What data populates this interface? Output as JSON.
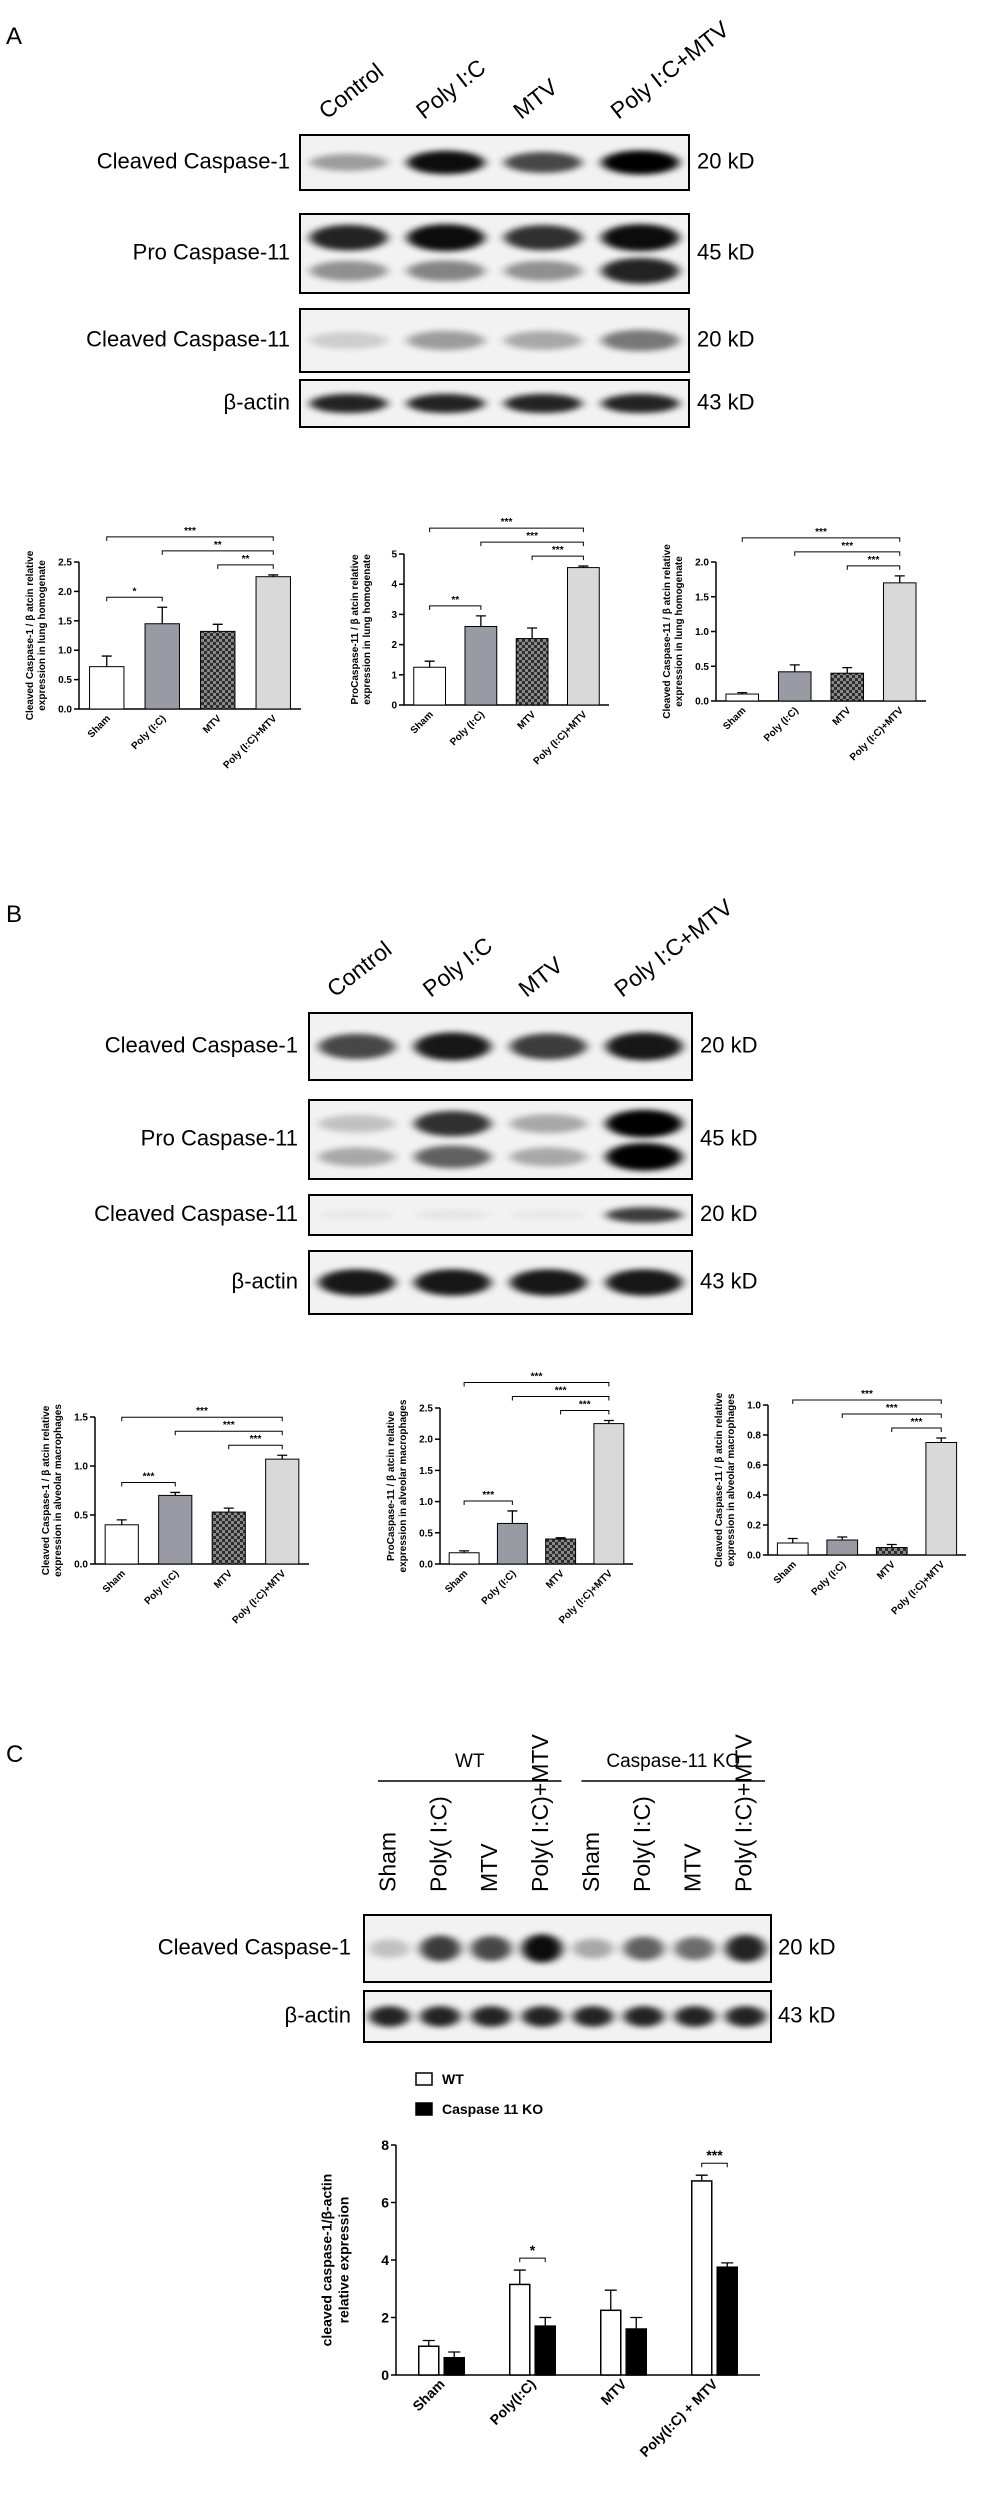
{
  "panels": [
    "A",
    "B",
    "C"
  ],
  "blots": [
    {
      "lanes": [
        "Control",
        "Poly I:C",
        "MTV",
        "Poly I:C+MTV"
      ],
      "rows": [
        {
          "label": "Cleaved Caspase-1",
          "size": "20 kD"
        },
        {
          "label": "Pro Caspase-11",
          "size": "45 kD"
        },
        {
          "label": "Cleaved Caspase-11",
          "size": "20 kD"
        },
        {
          "label": "β-actin",
          "size": "43 kD"
        }
      ]
    },
    {
      "lanes": [
        "Control",
        "Poly I:C",
        "MTV",
        "Poly I:C+MTV"
      ],
      "rows": [
        {
          "label": "Cleaved Caspase-1",
          "size": "20 kD"
        },
        {
          "label": "Pro Caspase-11",
          "size": "45 kD"
        },
        {
          "label": "Cleaved Caspase-11",
          "size": "20 kD"
        },
        {
          "label": "β-actin",
          "size": "43 kD"
        }
      ]
    },
    {
      "groups": [
        "WT",
        "Caspase-11 KO"
      ],
      "lanes": [
        "Sham",
        "Poly( I:C)",
        "MTV",
        "Poly( I:C)+MTV",
        "Sham",
        "Poly( I:C)",
        "MTV",
        "Poly( I:C)+MTV"
      ],
      "rows": [
        {
          "label": "Cleaved Caspase-1",
          "size": "20 kD"
        },
        {
          "label": "β-actin",
          "size": "43 kD"
        }
      ]
    }
  ],
  "chart_data": [
    {
      "type": "bar",
      "ylabel": [
        "Cleaved Caspase-1 / β atcin relative",
        "expression in lung homogenate"
      ],
      "categories": [
        "Sham",
        "Poly (I:C)",
        "MTV",
        "Poly (I:C)+MTV"
      ],
      "values": [
        0.72,
        1.45,
        1.32,
        2.25
      ],
      "errors": [
        0.18,
        0.28,
        0.12,
        0.03
      ],
      "colors": [
        "#ffffff",
        "#9a9aa4",
        "#4a4a4a",
        "#d9d9d9"
      ],
      "checkered": [
        false,
        false,
        true,
        false
      ],
      "ylim": [
        0,
        2.5
      ],
      "yticks": [
        {
          "value": 0,
          "label": "0.0"
        },
        0.5,
        {
          "value": 1,
          "label": "1.0"
        },
        1.5,
        {
          "value": 2,
          "label": "2.0"
        },
        2.5
      ],
      "comparisons": [
        {
          "text": "*",
          "pair": [
            0,
            1
          ]
        },
        {
          "text": "**",
          "pair": [
            2,
            3
          ]
        },
        {
          "text": "**",
          "pair": [
            1,
            3
          ]
        },
        {
          "text": "***",
          "pair": [
            0,
            3
          ]
        }
      ]
    },
    {
      "type": "bar",
      "ylabel": [
        "ProCaspase-11 / β atcin relative",
        "expression in lung homogenate"
      ],
      "categories": [
        "Sham",
        "Poly (I:C)",
        "MTV",
        "Poly (I:C)+MTV"
      ],
      "values": [
        1.25,
        2.6,
        2.2,
        4.55
      ],
      "errors": [
        0.2,
        0.35,
        0.35,
        0.05
      ],
      "colors": [
        "#ffffff",
        "#9a9aa4",
        "#4a4a4a",
        "#d9d9d9"
      ],
      "checkered": [
        false,
        false,
        true,
        false
      ],
      "ylim": [
        0,
        5
      ],
      "yticks": [
        0,
        1,
        2,
        3,
        4,
        5
      ],
      "comparisons": [
        {
          "text": "**",
          "pair": [
            0,
            1
          ]
        },
        {
          "text": "***",
          "pair": [
            2,
            3
          ]
        },
        {
          "text": "***",
          "pair": [
            1,
            3
          ]
        },
        {
          "text": "***",
          "pair": [
            0,
            3
          ]
        }
      ]
    },
    {
      "type": "bar",
      "ylabel": [
        "Cleaved Caspase-11 / β atcin relative",
        "expression in lung homogenate"
      ],
      "categories": [
        "Sham",
        "Poly (I:C)",
        "MTV",
        "Poly (I:C)+MTV"
      ],
      "values": [
        0.1,
        0.42,
        0.4,
        1.7
      ],
      "errors": [
        0.02,
        0.1,
        0.08,
        0.1
      ],
      "colors": [
        "#ffffff",
        "#9a9aa4",
        "#4a4a4a",
        "#d9d9d9"
      ],
      "checkered": [
        false,
        false,
        true,
        false
      ],
      "ylim": [
        0,
        2
      ],
      "yticks": [
        {
          "value": 0,
          "label": "0.0"
        },
        0.5,
        {
          "value": 1,
          "label": "1.0"
        },
        1.5,
        {
          "value": 2,
          "label": "2.0"
        }
      ],
      "comparisons": [
        {
          "text": "***",
          "pair": [
            2,
            3
          ]
        },
        {
          "text": "***",
          "pair": [
            1,
            3
          ]
        },
        {
          "text": "***",
          "pair": [
            0,
            3
          ]
        }
      ]
    },
    {
      "type": "bar",
      "ylabel": [
        "Cleaved Caspase-1 / β atcin relative",
        "expression in alveolar macrophages"
      ],
      "categories": [
        "Sham",
        "Poly (I:C)",
        "MTV",
        "Poly (I:C)+MTV"
      ],
      "values": [
        0.4,
        0.7,
        0.53,
        1.07
      ],
      "errors": [
        0.05,
        0.03,
        0.04,
        0.04
      ],
      "colors": [
        "#ffffff",
        "#9a9aa4",
        "#4a4a4a",
        "#d9d9d9"
      ],
      "checkered": [
        false,
        false,
        true,
        false
      ],
      "ylim": [
        0,
        1.5
      ],
      "yticks": [
        {
          "value": 0,
          "label": "0.0"
        },
        0.5,
        {
          "value": 1,
          "label": "1.0"
        },
        1.5
      ],
      "comparisons": [
        {
          "text": "***",
          "pair": [
            0,
            1
          ]
        },
        {
          "text": "***",
          "pair": [
            2,
            3
          ]
        },
        {
          "text": "***",
          "pair": [
            1,
            3
          ]
        },
        {
          "text": "***",
          "pair": [
            0,
            3
          ]
        }
      ]
    },
    {
      "type": "bar",
      "ylabel": [
        "ProCaspase-11 / β atcin relative",
        "expression in alveolar macrophages"
      ],
      "categories": [
        "Sham",
        "Poly (I:C)",
        "MTV",
        "Poly (I:C)+MTV"
      ],
      "values": [
        0.18,
        0.65,
        0.4,
        2.25
      ],
      "errors": [
        0.03,
        0.2,
        0.02,
        0.05
      ],
      "colors": [
        "#ffffff",
        "#9a9aa4",
        "#4a4a4a",
        "#d9d9d9"
      ],
      "checkered": [
        false,
        false,
        true,
        false
      ],
      "ylim": [
        0,
        2.5
      ],
      "yticks": [
        {
          "value": 0,
          "label": "0.0"
        },
        0.5,
        {
          "value": 1,
          "label": "1.0"
        },
        1.5,
        {
          "value": 2,
          "label": "2.0"
        },
        2.5
      ],
      "comparisons": [
        {
          "text": "***",
          "pair": [
            0,
            1
          ]
        },
        {
          "text": "***",
          "pair": [
            2,
            3
          ]
        },
        {
          "text": "***",
          "pair": [
            1,
            3
          ]
        },
        {
          "text": "***",
          "pair": [
            0,
            3
          ]
        }
      ]
    },
    {
      "type": "bar",
      "ylabel": [
        "Cleaved Caspase-11 / β atcin relative",
        "expression in alveolar macrophages"
      ],
      "categories": [
        "Sham",
        "Poly (I:C)",
        "MTV",
        "Poly (I:C)+MTV"
      ],
      "values": [
        0.08,
        0.1,
        0.05,
        0.75
      ],
      "errors": [
        0.03,
        0.02,
        0.02,
        0.03
      ],
      "colors": [
        "#ffffff",
        "#9a9aa4",
        "#4a4a4a",
        "#d9d9d9"
      ],
      "checkered": [
        false,
        false,
        true,
        false
      ],
      "ylim": [
        0,
        1
      ],
      "yticks": [
        {
          "value": 0,
          "label": "0.0"
        },
        0.2,
        0.4,
        0.6,
        0.8,
        {
          "value": 1,
          "label": "1.0"
        }
      ],
      "comparisons": [
        {
          "text": "***",
          "pair": [
            2,
            3
          ]
        },
        {
          "text": "***",
          "pair": [
            1,
            3
          ]
        },
        {
          "text": "***",
          "pair": [
            0,
            3
          ]
        }
      ]
    },
    {
      "type": "grouped_bar",
      "ylabel": [
        "cleaved caspase-1/β-actin",
        "relative expression"
      ],
      "categories": [
        "Sham",
        "Poly(I:C)",
        "MTV",
        "Poly(I:C) + MTV"
      ],
      "series": [
        {
          "name": "WT",
          "color": "#ffffff",
          "values": [
            1.0,
            3.15,
            2.25,
            6.75
          ],
          "errors": [
            0.2,
            0.5,
            0.7,
            0.2
          ]
        },
        {
          "name": "Caspase 11 KO",
          "color": "#000000",
          "values": [
            0.6,
            1.7,
            1.6,
            3.75
          ],
          "errors": [
            0.2,
            0.3,
            0.4,
            0.15
          ]
        }
      ],
      "ylim": [
        0,
        8
      ],
      "yticks": [
        0,
        2,
        4,
        6,
        8
      ],
      "legend": "top-left",
      "comparisons": [
        {
          "text": "*",
          "category": 1
        },
        {
          "text": "***",
          "category": 3
        }
      ]
    }
  ]
}
